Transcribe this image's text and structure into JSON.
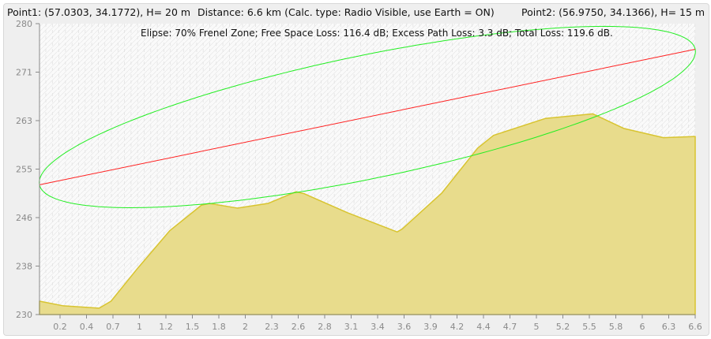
{
  "header": {
    "point1": "Point1: (57.0303, 34.1772), H= 20 m",
    "distance": "Distance: 6.6 km (Calc. type: Radio Visible, use Earth = ON)",
    "point2": "Point2: (56.9750, 34.1366), H= 15 m"
  },
  "chart_data": {
    "type": "area",
    "info_line": "Elipse: 70% Frenel Zone;  Free Space Loss: 116.4 dB;  Excess Path Loss: 3.3 dB;   Total Loss: 119.6 dB.",
    "xlim": [
      0,
      6.6
    ],
    "ylim": [
      230,
      280
    ],
    "yticks": [
      "280",
      "271",
      "263",
      "255",
      "246",
      "238",
      "230"
    ],
    "xticks": [
      "0.2",
      "0.4",
      "0.7",
      "1",
      "1.2",
      "1.5",
      "1.8",
      "2",
      "2.3",
      "2.6",
      "2.8",
      "3.1",
      "3.4",
      "3.6",
      "3.9",
      "4.2",
      "4.4",
      "4.7",
      "5",
      "5.2",
      "5.5",
      "5.8",
      "6",
      "6.3",
      "6.6"
    ],
    "grid": true,
    "terrain": {
      "x": [
        0,
        0.24,
        0.6,
        0.72,
        0.99,
        1.31,
        1.63,
        1.71,
        1.99,
        2.3,
        2.58,
        2.66,
        3.1,
        3.6,
        3.65,
        4.05,
        4.41,
        4.57,
        5.09,
        5.57,
        5.88,
        6.28,
        6.6
      ],
      "y": [
        232.3,
        231.5,
        231.1,
        232.3,
        238,
        244.4,
        248.8,
        249.1,
        248.3,
        249.1,
        251.1,
        250.8,
        247.5,
        244.2,
        244.7,
        250.9,
        258.6,
        260.8,
        263.7,
        264.5,
        262,
        260.4,
        260.6
      ]
    },
    "line_of_sight": {
      "x": [
        0,
        6.6
      ],
      "y": [
        252.3,
        275.6
      ]
    },
    "fresnel_zone_percent": 70,
    "colors": {
      "terrain_fill": "#e8dc8c",
      "terrain_line": "#d8c430",
      "line_of_sight": "#ff2020",
      "fresnel": "#22ee22",
      "axis": "#8a8a8a"
    }
  }
}
